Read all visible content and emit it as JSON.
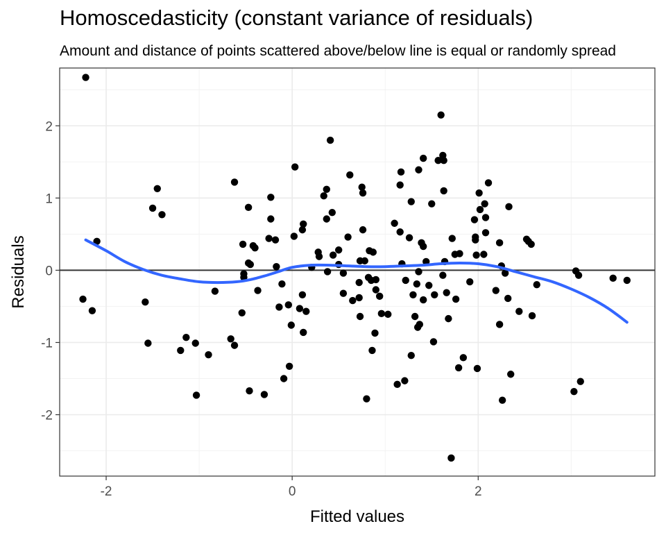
{
  "chart_data": {
    "type": "scatter",
    "title": "Homoscedasticity (constant variance of residuals)",
    "subtitle": "Amount and distance of points scattered above/below line is equal or randomly spread",
    "xlabel": "Fitted values",
    "ylabel": "Residuals",
    "xlim": [
      -2.5,
      3.9
    ],
    "ylim": [
      -2.85,
      2.8
    ],
    "x_ticks": [
      -2,
      0,
      2
    ],
    "y_ticks": [
      -2,
      -1,
      0,
      1,
      2
    ],
    "grid": true,
    "reference_line_y": 0,
    "point_color": "#000000",
    "smooth_color": "#3366FF",
    "points": [
      [
        -2.22,
        2.67
      ],
      [
        -2.1,
        0.4
      ],
      [
        -2.25,
        -0.4
      ],
      [
        -2.15,
        -0.56
      ],
      [
        -1.5,
        0.86
      ],
      [
        -1.45,
        1.13
      ],
      [
        -1.4,
        0.77
      ],
      [
        -1.58,
        -0.44
      ],
      [
        -1.55,
        -1.01
      ],
      [
        -1.2,
        -1.11
      ],
      [
        -1.14,
        -0.93
      ],
      [
        -1.04,
        -1.01
      ],
      [
        -1.03,
        -1.73
      ],
      [
        -0.9,
        -1.17
      ],
      [
        -0.83,
        -0.29
      ],
      [
        -0.66,
        -0.95
      ],
      [
        -0.62,
        -1.04
      ],
      [
        -0.62,
        1.22
      ],
      [
        -0.53,
        0.36
      ],
      [
        -0.52,
        -0.05
      ],
      [
        -0.52,
        -0.1
      ],
      [
        -0.54,
        -0.59
      ],
      [
        -0.47,
        0.87
      ],
      [
        -0.47,
        0.1
      ],
      [
        -0.45,
        0.08
      ],
      [
        -0.42,
        0.34
      ],
      [
        -0.4,
        0.31
      ],
      [
        -0.37,
        -0.28
      ],
      [
        -0.46,
        -1.67
      ],
      [
        -0.3,
        -1.72
      ],
      [
        -0.25,
        0.44
      ],
      [
        -0.23,
        0.71
      ],
      [
        -0.23,
        1.01
      ],
      [
        -0.18,
        0.42
      ],
      [
        -0.17,
        0.05
      ],
      [
        -0.14,
        -0.51
      ],
      [
        -0.11,
        -0.19
      ],
      [
        -0.09,
        -1.5
      ],
      [
        -0.03,
        -1.33
      ],
      [
        -0.04,
        -0.48
      ],
      [
        -0.01,
        -0.76
      ],
      [
        0.02,
        0.47
      ],
      [
        0.03,
        1.43
      ],
      [
        0.08,
        -0.53
      ],
      [
        0.11,
        0.56
      ],
      [
        0.12,
        0.64
      ],
      [
        0.11,
        -0.34
      ],
      [
        0.12,
        -0.86
      ],
      [
        0.15,
        -0.57
      ],
      [
        0.21,
        0.04
      ],
      [
        0.28,
        0.25
      ],
      [
        0.29,
        0.19
      ],
      [
        0.34,
        1.03
      ],
      [
        0.37,
        1.12
      ],
      [
        0.37,
        0.71
      ],
      [
        0.38,
        -0.02
      ],
      [
        0.41,
        1.8
      ],
      [
        0.43,
        0.8
      ],
      [
        0.44,
        0.21
      ],
      [
        0.5,
        0.28
      ],
      [
        0.5,
        0.08
      ],
      [
        0.55,
        -0.04
      ],
      [
        0.55,
        -0.32
      ],
      [
        0.6,
        0.46
      ],
      [
        0.62,
        1.32
      ],
      [
        0.65,
        -0.42
      ],
      [
        0.72,
        -0.38
      ],
      [
        0.72,
        -0.17
      ],
      [
        0.73,
        0.13
      ],
      [
        0.73,
        -0.64
      ],
      [
        0.75,
        1.15
      ],
      [
        0.76,
        1.07
      ],
      [
        0.76,
        0.56
      ],
      [
        0.78,
        0.13
      ],
      [
        0.8,
        -1.78
      ],
      [
        0.83,
        0.27
      ],
      [
        0.82,
        -0.1
      ],
      [
        0.85,
        -0.14
      ],
      [
        0.86,
        -1.11
      ],
      [
        0.87,
        0.25
      ],
      [
        0.9,
        -0.13
      ],
      [
        0.9,
        -0.27
      ],
      [
        0.89,
        -0.87
      ],
      [
        0.94,
        -0.36
      ],
      [
        0.96,
        -0.6
      ],
      [
        1.03,
        -0.61
      ],
      [
        1.1,
        0.65
      ],
      [
        1.13,
        -1.58
      ],
      [
        1.16,
        0.53
      ],
      [
        1.16,
        1.18
      ],
      [
        1.17,
        1.36
      ],
      [
        1.18,
        0.09
      ],
      [
        1.21,
        -1.53
      ],
      [
        1.22,
        -0.14
      ],
      [
        1.26,
        0.45
      ],
      [
        1.28,
        0.95
      ],
      [
        1.28,
        -1.18
      ],
      [
        1.3,
        -0.34
      ],
      [
        1.32,
        -0.64
      ],
      [
        1.34,
        -0.19
      ],
      [
        1.35,
        -0.79
      ],
      [
        1.36,
        -0.02
      ],
      [
        1.36,
        1.39
      ],
      [
        1.37,
        -0.75
      ],
      [
        1.39,
        0.38
      ],
      [
        1.41,
        1.55
      ],
      [
        1.41,
        0.33
      ],
      [
        1.41,
        -0.41
      ],
      [
        1.44,
        0.12
      ],
      [
        1.47,
        -0.21
      ],
      [
        1.5,
        0.92
      ],
      [
        1.52,
        -0.99
      ],
      [
        1.53,
        -0.34
      ],
      [
        1.57,
        1.52
      ],
      [
        1.6,
        2.15
      ],
      [
        1.62,
        1.59
      ],
      [
        1.62,
        -0.07
      ],
      [
        1.63,
        1.52
      ],
      [
        1.63,
        1.1
      ],
      [
        1.64,
        0.12
      ],
      [
        1.66,
        -0.31
      ],
      [
        1.68,
        -0.67
      ],
      [
        1.71,
        -2.6
      ],
      [
        1.72,
        0.44
      ],
      [
        1.75,
        0.22
      ],
      [
        1.76,
        -0.4
      ],
      [
        1.8,
        0.23
      ],
      [
        1.79,
        -1.35
      ],
      [
        1.84,
        -1.21
      ],
      [
        1.91,
        -0.16
      ],
      [
        1.96,
        0.7
      ],
      [
        1.97,
        0.42
      ],
      [
        1.97,
        0.46
      ],
      [
        1.98,
        0.21
      ],
      [
        1.99,
        -1.36
      ],
      [
        2.01,
        1.07
      ],
      [
        2.02,
        0.84
      ],
      [
        2.06,
        0.22
      ],
      [
        2.07,
        0.92
      ],
      [
        2.08,
        0.73
      ],
      [
        2.08,
        0.52
      ],
      [
        2.11,
        1.21
      ],
      [
        2.19,
        -0.28
      ],
      [
        2.23,
        0.38
      ],
      [
        2.23,
        -0.75
      ],
      [
        2.25,
        0.06
      ],
      [
        2.26,
        -1.8
      ],
      [
        2.29,
        -0.04
      ],
      [
        2.32,
        -0.39
      ],
      [
        2.33,
        0.88
      ],
      [
        2.35,
        -1.44
      ],
      [
        2.44,
        -0.57
      ],
      [
        2.52,
        0.43
      ],
      [
        2.54,
        0.4
      ],
      [
        2.57,
        0.36
      ],
      [
        2.58,
        -0.63
      ],
      [
        2.63,
        -0.2
      ],
      [
        3.03,
        -1.68
      ],
      [
        3.05,
        -0.01
      ],
      [
        3.08,
        -0.07
      ],
      [
        3.1,
        -1.54
      ],
      [
        3.45,
        -0.11
      ],
      [
        3.6,
        -0.14
      ]
    ],
    "smooth": [
      [
        -2.22,
        0.42
      ],
      [
        -2.0,
        0.27
      ],
      [
        -1.8,
        0.12
      ],
      [
        -1.6,
        0.01
      ],
      [
        -1.4,
        -0.07
      ],
      [
        -1.2,
        -0.12
      ],
      [
        -1.0,
        -0.16
      ],
      [
        -0.8,
        -0.17
      ],
      [
        -0.6,
        -0.16
      ],
      [
        -0.45,
        -0.13
      ],
      [
        -0.3,
        -0.08
      ],
      [
        -0.15,
        -0.02
      ],
      [
        0.0,
        0.04
      ],
      [
        0.2,
        0.07
      ],
      [
        0.4,
        0.07
      ],
      [
        0.6,
        0.06
      ],
      [
        0.8,
        0.05
      ],
      [
        1.0,
        0.05
      ],
      [
        1.2,
        0.06
      ],
      [
        1.4,
        0.07
      ],
      [
        1.6,
        0.09
      ],
      [
        1.8,
        0.1
      ],
      [
        2.0,
        0.09
      ],
      [
        2.2,
        0.05
      ],
      [
        2.4,
        -0.02
      ],
      [
        2.6,
        -0.09
      ],
      [
        2.8,
        -0.16
      ],
      [
        3.0,
        -0.26
      ],
      [
        3.2,
        -0.38
      ],
      [
        3.4,
        -0.53
      ],
      [
        3.6,
        -0.72
      ]
    ]
  }
}
